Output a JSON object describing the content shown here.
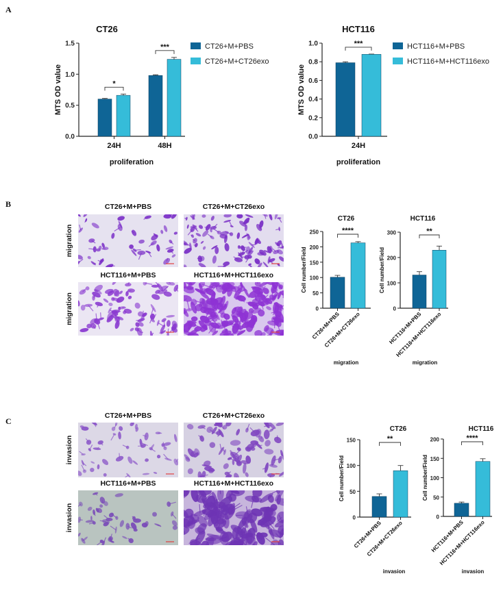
{
  "panel_labels": {
    "a": "A",
    "b": "B",
    "c": "C"
  },
  "colors": {
    "pbs": "#0f6596",
    "exo": "#35bcd9",
    "stain": "#7a2fc4",
    "text": "#222222"
  },
  "micrographs": {
    "migration": {
      "row_label": "migration",
      "titles": [
        "CT26+M+PBS",
        "CT26+M+CT26exo",
        "HCT116+M+PBS",
        "HCT116+M+HCT116exo"
      ]
    },
    "invasion": {
      "row_label": "invasion",
      "titles": [
        "CT26+M+PBS",
        "CT26+M+CT26exo",
        "HCT116+M+PBS",
        "HCT116+M+HCT116exo"
      ]
    }
  },
  "chart_data": [
    {
      "type": "bar",
      "title": "CT26",
      "ylabel": "MTS OD value",
      "xlabel": "proliferation",
      "categories": [
        "24H",
        "48H"
      ],
      "series": [
        {
          "name": "CT26+M+PBS",
          "values": [
            0.6,
            0.98
          ],
          "errors": [
            0.01,
            0.01
          ]
        },
        {
          "name": "CT26+M+CT26exo",
          "values": [
            0.66,
            1.24
          ],
          "errors": [
            0.02,
            0.03
          ]
        }
      ],
      "ylim": [
        0,
        1.5
      ],
      "yticks": [
        0,
        0.5,
        1.0,
        1.5
      ],
      "ytick_labels": [
        "0.0",
        "0.5",
        "1.0",
        "1.5"
      ],
      "significance": [
        "*",
        "***"
      ],
      "legend": "right",
      "grid": false
    },
    {
      "type": "bar",
      "title": "HCT116",
      "ylabel": "MTS OD value",
      "xlabel": "proliferation",
      "categories": [
        "24H"
      ],
      "series": [
        {
          "name": "HCT116+M+PBS",
          "values": [
            0.79
          ],
          "errors": [
            0.01
          ]
        },
        {
          "name": "HCT116+M+HCT116exo",
          "values": [
            0.88
          ],
          "errors": [
            0.003
          ]
        }
      ],
      "ylim": [
        0,
        1.0
      ],
      "yticks": [
        0,
        0.2,
        0.4,
        0.6,
        0.8,
        1.0
      ],
      "ytick_labels": [
        "0.0",
        "0.2",
        "0.4",
        "0.6",
        "0.8",
        "1.0"
      ],
      "significance": [
        "***"
      ],
      "legend": "right",
      "grid": false
    },
    {
      "type": "bar",
      "title": "CT26",
      "ylabel": "Cell number/Field",
      "xlabel": "migration",
      "categories": [
        "CT26+M+PBS",
        "CT26+M+CT26exo"
      ],
      "values": [
        101,
        213
      ],
      "errors": [
        6,
        4
      ],
      "ylim": [
        0,
        250
      ],
      "yticks": [
        0,
        50,
        100,
        150,
        200,
        250
      ],
      "ytick_labels": [
        "0",
        "50",
        "100",
        "150",
        "200",
        "250"
      ],
      "significance": "****",
      "grid": false
    },
    {
      "type": "bar",
      "title": "HCT116",
      "ylabel": "Cell number/Field",
      "xlabel": "migration",
      "categories": [
        "HCT116+M+PBS",
        "HCT116+M+HCT116exo"
      ],
      "values": [
        131,
        229
      ],
      "errors": [
        13,
        16
      ],
      "ylim": [
        0,
        300
      ],
      "yticks": [
        0,
        100,
        200,
        300
      ],
      "ytick_labels": [
        "0",
        "100",
        "200",
        "300"
      ],
      "significance": "**",
      "grid": false
    },
    {
      "type": "bar",
      "title": "CT26",
      "ylabel": "Cell number/Field",
      "xlabel": "invasion",
      "categories": [
        "CT26+M+PBS",
        "CT26+M+CT26exo"
      ],
      "values": [
        40,
        90
      ],
      "errors": [
        5,
        10
      ],
      "ylim": [
        0,
        150
      ],
      "yticks": [
        0,
        50,
        100,
        150
      ],
      "ytick_labels": [
        "0",
        "50",
        "100",
        "150"
      ],
      "significance": "**",
      "grid": false
    },
    {
      "type": "bar",
      "title": "HCT116",
      "ylabel": "Cell number/Field",
      "xlabel": "invasion",
      "categories": [
        "HCT116+M+PBS",
        "HCT116+M+HCT116exo"
      ],
      "values": [
        34,
        142
      ],
      "errors": [
        3,
        7
      ],
      "ylim": [
        0,
        200
      ],
      "yticks": [
        0,
        50,
        100,
        150,
        200
      ],
      "ytick_labels": [
        "0",
        "50",
        "100",
        "150",
        "200"
      ],
      "significance": "****",
      "grid": false
    }
  ]
}
